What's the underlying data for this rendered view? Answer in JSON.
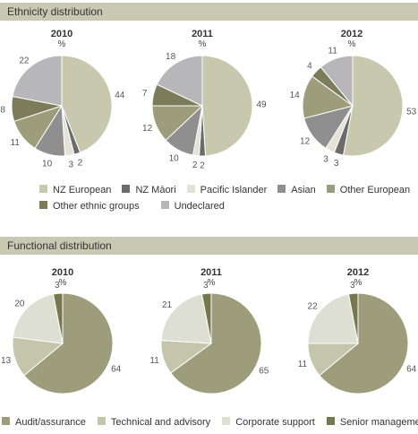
{
  "sections": {
    "ethnicity_title": "Ethnicity distribution",
    "functional_title": "Functional distribution"
  },
  "chart_data": [
    {
      "type": "pie",
      "title": "Ethnicity distribution",
      "unit": "%",
      "categories": [
        "NZ European",
        "NZ Māori",
        "Pacific Islander",
        "Asian",
        "Other European",
        "Other ethnic groups",
        "Undeclared"
      ],
      "colors": [
        "#c8c8ae",
        "#6b6b6b",
        "#e2e2d6",
        "#8f8f8f",
        "#9d9d7c",
        "#7c7c5a",
        "#b7b7b9"
      ],
      "series": [
        {
          "name": "2010",
          "values": [
            44,
            2,
            3,
            10,
            11,
            8,
            22
          ]
        },
        {
          "name": "2011",
          "values": [
            49,
            2,
            2,
            10,
            12,
            7,
            18
          ]
        },
        {
          "name": "2012",
          "values": [
            53,
            3,
            3,
            12,
            14,
            4,
            11
          ]
        }
      ]
    },
    {
      "type": "pie",
      "title": "Functional distribution",
      "unit": "%",
      "categories": [
        "Audit/assurance",
        "Technical and advisory",
        "Corporate support",
        "Senior management"
      ],
      "colors": [
        "#9d9d7c",
        "#c5c5ab",
        "#dedfd3",
        "#76764f"
      ],
      "series": [
        {
          "name": "2010",
          "values": [
            64,
            13,
            20,
            3
          ]
        },
        {
          "name": "2011",
          "values": [
            65,
            11,
            21,
            3
          ]
        },
        {
          "name": "2012",
          "values": [
            64,
            11,
            22,
            3
          ]
        }
      ]
    }
  ]
}
